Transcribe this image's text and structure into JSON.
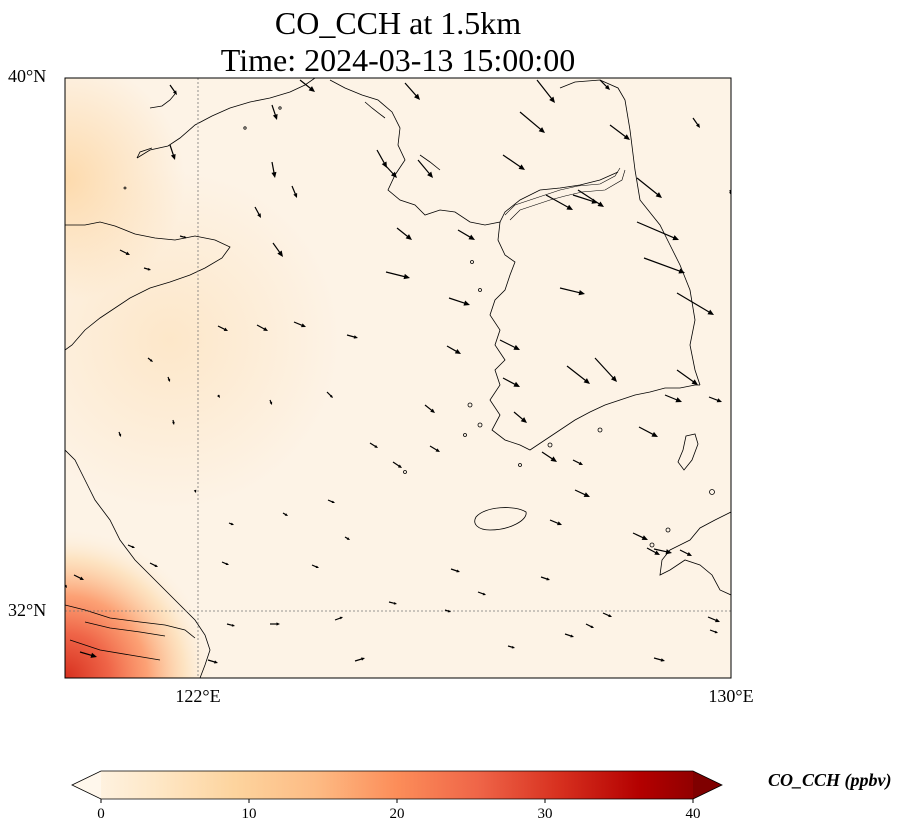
{
  "title": {
    "line1": "CO_CCH at 1.5km",
    "line2": "Time: 2024-03-13 15:00:00"
  },
  "map": {
    "lat_ticks": [
      "40°N",
      "32°N"
    ],
    "lon_ticks": [
      "122°E",
      "130°E"
    ],
    "extent": {
      "lon": [
        120,
        130
      ],
      "lat": [
        31,
        40
      ]
    },
    "gridlines": {
      "lon": 122,
      "lat": 32,
      "style": "dotted"
    }
  },
  "colorbar": {
    "label": "CO_CCH (ppbv)",
    "ticks": [
      "0",
      "10",
      "20",
      "30",
      "40"
    ],
    "range": [
      0,
      40
    ],
    "colormap": "OrRd",
    "colors": [
      "#fff7ec",
      "#fee8c8",
      "#fdd49e",
      "#fdbb84",
      "#fc8d59",
      "#ef6548",
      "#d7301f",
      "#b30000",
      "#7f0000"
    ],
    "extend": "both"
  },
  "field": {
    "background_ppbv": 2,
    "hotspot_southwest_ppbv": 26
  }
}
